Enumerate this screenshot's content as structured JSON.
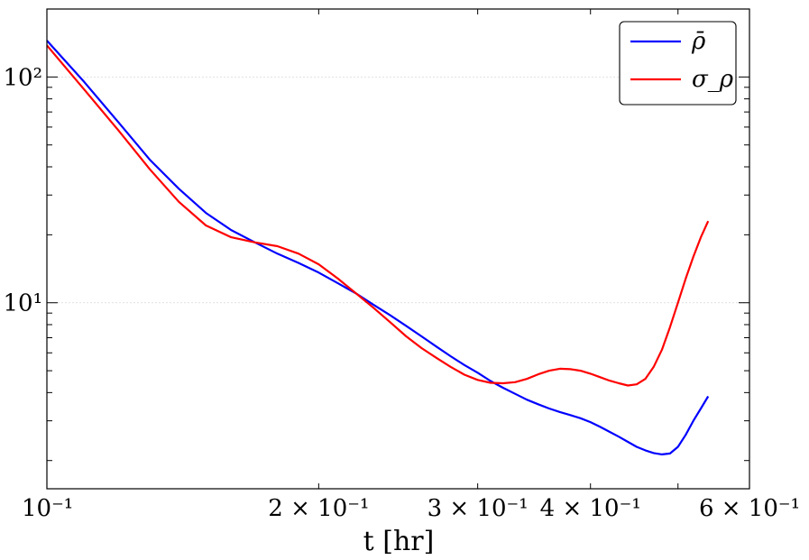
{
  "chart_data": {
    "type": "line",
    "title": "",
    "xlabel": "t [hr]",
    "ylabel": "",
    "xscale": "log",
    "yscale": "log",
    "xlim": [
      0.1,
      0.6
    ],
    "ylim": [
      1.5,
      200
    ],
    "x_tick_labels": [
      {
        "value": 0.1,
        "label": "10⁻¹"
      },
      {
        "value": 0.2,
        "label": "2 × 10⁻¹"
      },
      {
        "value": 0.3,
        "label": "3 × 10⁻¹"
      },
      {
        "value": 0.4,
        "label": "4 × 10⁻¹"
      },
      {
        "value": 0.6,
        "label": "6 × 10⁻¹"
      }
    ],
    "y_tick_labels": [
      {
        "value": 10,
        "label": "10¹"
      },
      {
        "value": 100,
        "label": "10²"
      }
    ],
    "grid": true,
    "legend_position": "top-right",
    "series": [
      {
        "name": "ρ̄",
        "color": "#0000ff",
        "x": [
          0.1,
          0.11,
          0.12,
          0.13,
          0.14,
          0.15,
          0.16,
          0.17,
          0.18,
          0.19,
          0.2,
          0.21,
          0.22,
          0.23,
          0.24,
          0.25,
          0.26,
          0.27,
          0.28,
          0.29,
          0.3,
          0.31,
          0.32,
          0.33,
          0.34,
          0.35,
          0.36,
          0.37,
          0.38,
          0.39,
          0.4,
          0.41,
          0.42,
          0.43,
          0.44,
          0.45,
          0.46,
          0.47,
          0.48,
          0.49,
          0.5,
          0.51,
          0.52,
          0.53,
          0.54
        ],
        "values": [
          145,
          95,
          63,
          43,
          32,
          25,
          21,
          18.5,
          16.5,
          15,
          13.6,
          12.2,
          11,
          9.8,
          8.8,
          7.9,
          7.1,
          6.4,
          5.8,
          5.3,
          4.9,
          4.5,
          4.2,
          3.95,
          3.72,
          3.55,
          3.4,
          3.28,
          3.18,
          3.08,
          2.96,
          2.82,
          2.68,
          2.55,
          2.42,
          2.3,
          2.22,
          2.16,
          2.13,
          2.15,
          2.3,
          2.6,
          3.0,
          3.4,
          3.85
        ]
      },
      {
        "name": "σ_ρ",
        "color": "#ff0000",
        "x": [
          0.1,
          0.11,
          0.12,
          0.13,
          0.14,
          0.15,
          0.16,
          0.17,
          0.18,
          0.19,
          0.2,
          0.21,
          0.22,
          0.23,
          0.24,
          0.25,
          0.26,
          0.27,
          0.28,
          0.29,
          0.3,
          0.31,
          0.32,
          0.33,
          0.34,
          0.35,
          0.36,
          0.37,
          0.38,
          0.39,
          0.4,
          0.41,
          0.42,
          0.43,
          0.44,
          0.45,
          0.46,
          0.47,
          0.48,
          0.49,
          0.5,
          0.51,
          0.52,
          0.53,
          0.54
        ],
        "values": [
          138,
          88,
          58,
          39,
          28,
          22,
          19.5,
          18.5,
          17.8,
          16.5,
          14.8,
          12.8,
          11,
          9.5,
          8.2,
          7.1,
          6.3,
          5.7,
          5.2,
          4.8,
          4.55,
          4.42,
          4.4,
          4.45,
          4.6,
          4.82,
          5.0,
          5.1,
          5.08,
          5.0,
          4.85,
          4.68,
          4.52,
          4.4,
          4.3,
          4.35,
          4.6,
          5.2,
          6.2,
          7.8,
          10.0,
          12.8,
          16.0,
          19.5,
          23.0
        ]
      }
    ]
  }
}
